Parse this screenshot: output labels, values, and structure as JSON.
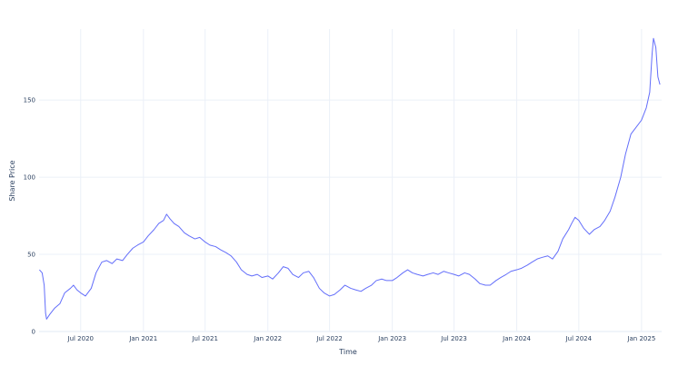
{
  "chart_data": {
    "type": "line",
    "title": "",
    "xlabel": "Time",
    "ylabel": "Share Price",
    "grid": true,
    "legend": "none",
    "line_color": "#636efa",
    "x_range": [
      "2020-03-01",
      "2025-03-01"
    ],
    "ylim": [
      0,
      196
    ],
    "x_tick_labels": [
      {
        "date": "2020-07-01",
        "label": "Jul 2020"
      },
      {
        "date": "2021-01-01",
        "label": "Jan 2021"
      },
      {
        "date": "2021-07-01",
        "label": "Jul 2021"
      },
      {
        "date": "2022-01-01",
        "label": "Jan 2022"
      },
      {
        "date": "2022-07-01",
        "label": "Jul 2022"
      },
      {
        "date": "2023-01-01",
        "label": "Jan 2023"
      },
      {
        "date": "2023-07-01",
        "label": "Jul 2023"
      },
      {
        "date": "2024-01-01",
        "label": "Jan 2024"
      },
      {
        "date": "2024-07-01",
        "label": "Jul 2024"
      },
      {
        "date": "2025-01-01",
        "label": "Jan 2025"
      }
    ],
    "y_ticks": [
      0,
      50,
      100,
      150
    ],
    "series": [
      {
        "points": [
          [
            "2020-03-02",
            40
          ],
          [
            "2020-03-10",
            38
          ],
          [
            "2020-03-16",
            30
          ],
          [
            "2020-03-20",
            12
          ],
          [
            "2020-03-23",
            8
          ],
          [
            "2020-04-01",
            11
          ],
          [
            "2020-04-15",
            15
          ],
          [
            "2020-05-01",
            18
          ],
          [
            "2020-05-15",
            25
          ],
          [
            "2020-06-01",
            28
          ],
          [
            "2020-06-10",
            30
          ],
          [
            "2020-06-20",
            27
          ],
          [
            "2020-07-01",
            25
          ],
          [
            "2020-07-15",
            23
          ],
          [
            "2020-08-01",
            28
          ],
          [
            "2020-08-15",
            38
          ],
          [
            "2020-09-01",
            45
          ],
          [
            "2020-09-15",
            46
          ],
          [
            "2020-10-01",
            44
          ],
          [
            "2020-10-15",
            47
          ],
          [
            "2020-11-01",
            46
          ],
          [
            "2020-11-15",
            50
          ],
          [
            "2020-12-01",
            54
          ],
          [
            "2020-12-15",
            56
          ],
          [
            "2021-01-01",
            58
          ],
          [
            "2021-01-15",
            62
          ],
          [
            "2021-02-01",
            66
          ],
          [
            "2021-02-15",
            70
          ],
          [
            "2021-03-01",
            72
          ],
          [
            "2021-03-10",
            76
          ],
          [
            "2021-03-20",
            73
          ],
          [
            "2021-04-01",
            70
          ],
          [
            "2021-04-15",
            68
          ],
          [
            "2021-05-01",
            64
          ],
          [
            "2021-05-15",
            62
          ],
          [
            "2021-06-01",
            60
          ],
          [
            "2021-06-15",
            61
          ],
          [
            "2021-07-01",
            58
          ],
          [
            "2021-07-15",
            56
          ],
          [
            "2021-08-01",
            55
          ],
          [
            "2021-08-15",
            53
          ],
          [
            "2021-09-01",
            51
          ],
          [
            "2021-09-15",
            49
          ],
          [
            "2021-10-01",
            45
          ],
          [
            "2021-10-15",
            40
          ],
          [
            "2021-11-01",
            37
          ],
          [
            "2021-11-15",
            36
          ],
          [
            "2021-12-01",
            37
          ],
          [
            "2021-12-15",
            35
          ],
          [
            "2022-01-01",
            36
          ],
          [
            "2022-01-15",
            34
          ],
          [
            "2022-02-01",
            38
          ],
          [
            "2022-02-15",
            42
          ],
          [
            "2022-03-01",
            41
          ],
          [
            "2022-03-15",
            37
          ],
          [
            "2022-04-01",
            35
          ],
          [
            "2022-04-15",
            38
          ],
          [
            "2022-05-01",
            39
          ],
          [
            "2022-05-15",
            35
          ],
          [
            "2022-06-01",
            28
          ],
          [
            "2022-06-15",
            25
          ],
          [
            "2022-07-01",
            23
          ],
          [
            "2022-07-15",
            24
          ],
          [
            "2022-08-01",
            27
          ],
          [
            "2022-08-15",
            30
          ],
          [
            "2022-09-01",
            28
          ],
          [
            "2022-09-15",
            27
          ],
          [
            "2022-10-01",
            26
          ],
          [
            "2022-10-15",
            28
          ],
          [
            "2022-11-01",
            30
          ],
          [
            "2022-11-15",
            33
          ],
          [
            "2022-12-01",
            34
          ],
          [
            "2022-12-15",
            33
          ],
          [
            "2023-01-01",
            33
          ],
          [
            "2023-01-15",
            35
          ],
          [
            "2023-02-01",
            38
          ],
          [
            "2023-02-15",
            40
          ],
          [
            "2023-03-01",
            38
          ],
          [
            "2023-03-15",
            37
          ],
          [
            "2023-04-01",
            36
          ],
          [
            "2023-04-15",
            37
          ],
          [
            "2023-05-01",
            38
          ],
          [
            "2023-05-15",
            37
          ],
          [
            "2023-06-01",
            39
          ],
          [
            "2023-06-15",
            38
          ],
          [
            "2023-07-01",
            37
          ],
          [
            "2023-07-15",
            36
          ],
          [
            "2023-08-01",
            38
          ],
          [
            "2023-08-15",
            37
          ],
          [
            "2023-09-01",
            34
          ],
          [
            "2023-09-15",
            31
          ],
          [
            "2023-10-01",
            30
          ],
          [
            "2023-10-15",
            30
          ],
          [
            "2023-11-01",
            33
          ],
          [
            "2023-11-15",
            35
          ],
          [
            "2023-12-01",
            37
          ],
          [
            "2023-12-15",
            39
          ],
          [
            "2024-01-01",
            40
          ],
          [
            "2024-01-15",
            41
          ],
          [
            "2024-02-01",
            43
          ],
          [
            "2024-02-15",
            45
          ],
          [
            "2024-03-01",
            47
          ],
          [
            "2024-03-15",
            48
          ],
          [
            "2024-04-01",
            49
          ],
          [
            "2024-04-15",
            47
          ],
          [
            "2024-05-01",
            52
          ],
          [
            "2024-05-15",
            60
          ],
          [
            "2024-06-01",
            66
          ],
          [
            "2024-06-10",
            70
          ],
          [
            "2024-06-20",
            74
          ],
          [
            "2024-07-01",
            72
          ],
          [
            "2024-07-15",
            67
          ],
          [
            "2024-08-01",
            63
          ],
          [
            "2024-08-15",
            66
          ],
          [
            "2024-09-01",
            68
          ],
          [
            "2024-09-15",
            72
          ],
          [
            "2024-10-01",
            78
          ],
          [
            "2024-10-15",
            87
          ],
          [
            "2024-11-01",
            100
          ],
          [
            "2024-11-15",
            115
          ],
          [
            "2024-12-01",
            128
          ],
          [
            "2024-12-15",
            132
          ],
          [
            "2025-01-01",
            137
          ],
          [
            "2025-01-15",
            145
          ],
          [
            "2025-01-25",
            155
          ],
          [
            "2025-02-01",
            180
          ],
          [
            "2025-02-05",
            190
          ],
          [
            "2025-02-12",
            184
          ],
          [
            "2025-02-18",
            165
          ],
          [
            "2025-02-24",
            160
          ]
        ]
      }
    ]
  }
}
